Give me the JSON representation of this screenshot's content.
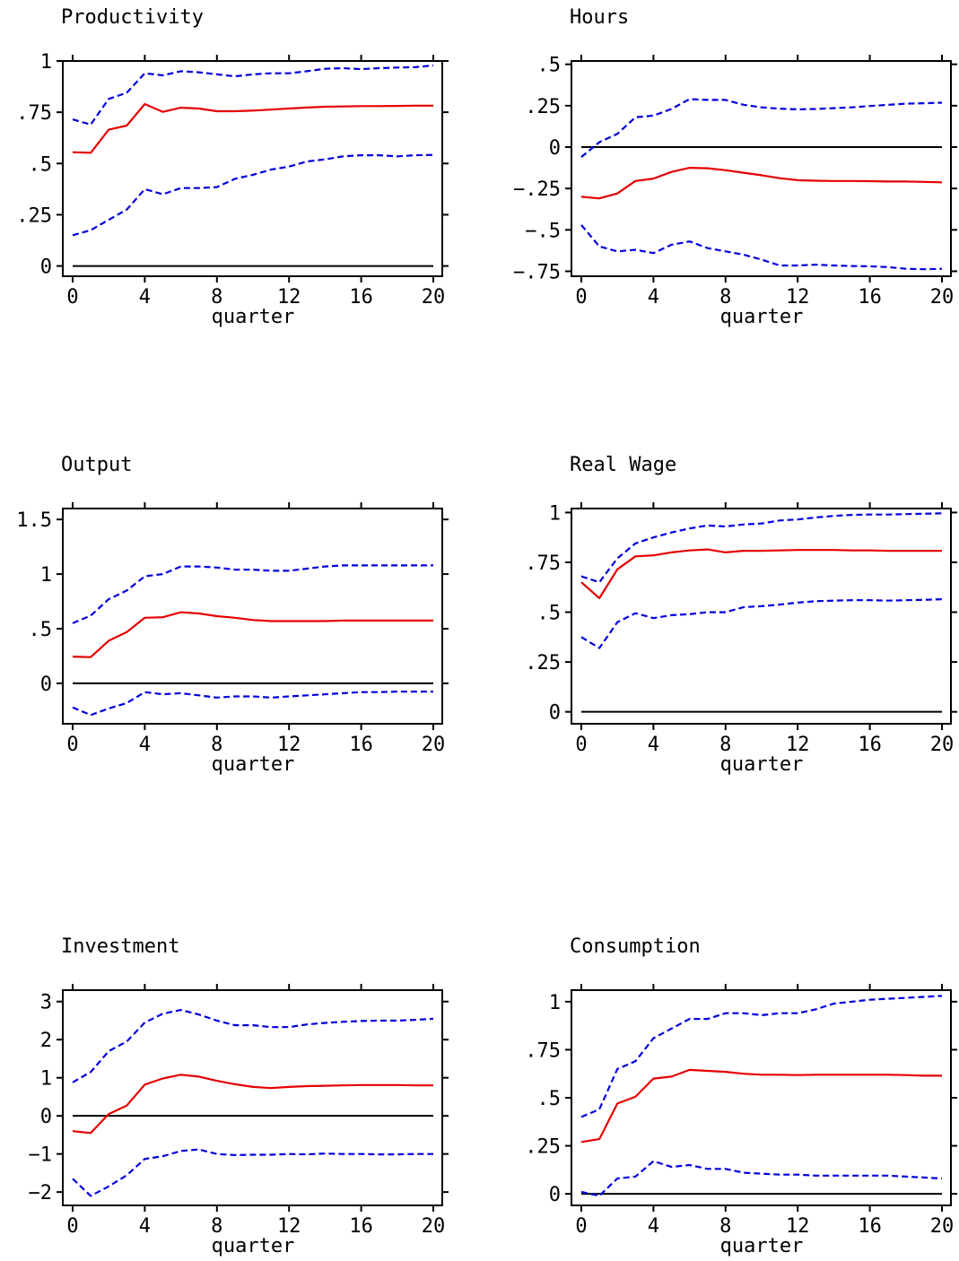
{
  "x_axis_label": "quarter",
  "colors": {
    "response": "#e60000",
    "bands": "#0000dd",
    "zero": "#000000",
    "frame": "#000000"
  },
  "chart_data": [
    {
      "type": "line",
      "title": "Productivity",
      "xlabel": "quarter",
      "ylabel": "",
      "xlim": [
        0,
        20
      ],
      "ylim": [
        -0.05,
        1.0
      ],
      "xticks": [
        0,
        4,
        8,
        12,
        16,
        20
      ],
      "xtick_labels": [
        "0",
        "4",
        "8",
        "12",
        "16",
        "20"
      ],
      "yticks": [
        0,
        0.25,
        0.5,
        0.75,
        1
      ],
      "ytick_labels": [
        "0",
        ".25",
        ".5",
        ".75",
        "1"
      ],
      "grid": false,
      "zero_line": 0,
      "x": [
        0,
        1,
        2,
        3,
        4,
        5,
        6,
        7,
        8,
        9,
        10,
        11,
        12,
        13,
        14,
        15,
        16,
        17,
        18,
        19,
        20
      ],
      "series": [
        {
          "role": "response",
          "style": "solid",
          "values": [
            0.555,
            0.552,
            0.665,
            0.685,
            0.79,
            0.752,
            0.772,
            0.768,
            0.755,
            0.755,
            0.758,
            0.763,
            0.768,
            0.773,
            0.777,
            0.778,
            0.78,
            0.78,
            0.781,
            0.782,
            0.782
          ]
        },
        {
          "role": "upper",
          "style": "dashed",
          "values": [
            0.715,
            0.69,
            0.815,
            0.845,
            0.94,
            0.93,
            0.95,
            0.945,
            0.935,
            0.925,
            0.935,
            0.94,
            0.94,
            0.95,
            0.962,
            0.965,
            0.96,
            0.965,
            0.968,
            0.97,
            0.978
          ]
        },
        {
          "role": "lower",
          "style": "dashed",
          "values": [
            0.15,
            0.175,
            0.225,
            0.275,
            0.375,
            0.35,
            0.38,
            0.38,
            0.385,
            0.425,
            0.445,
            0.47,
            0.485,
            0.51,
            0.52,
            0.535,
            0.54,
            0.54,
            0.535,
            0.54,
            0.542
          ]
        }
      ]
    },
    {
      "type": "line",
      "title": "Hours",
      "xlabel": "quarter",
      "ylabel": "",
      "xlim": [
        0,
        20
      ],
      "ylim": [
        -0.78,
        0.52
      ],
      "xticks": [
        0,
        4,
        8,
        12,
        16,
        20
      ],
      "xtick_labels": [
        "0",
        "4",
        "8",
        "12",
        "16",
        "20"
      ],
      "yticks": [
        0.5,
        0.25,
        0,
        -0.25,
        -0.5,
        -0.75
      ],
      "ytick_labels": [
        ".5",
        ".25",
        "0",
        "−.25",
        "−.5",
        "−.75"
      ],
      "grid": false,
      "zero_line": 0,
      "x": [
        0,
        1,
        2,
        3,
        4,
        5,
        6,
        7,
        8,
        9,
        10,
        11,
        12,
        13,
        14,
        15,
        16,
        17,
        18,
        19,
        20
      ],
      "series": [
        {
          "role": "response",
          "style": "solid",
          "values": [
            -0.3,
            -0.31,
            -0.28,
            -0.205,
            -0.19,
            -0.15,
            -0.125,
            -0.128,
            -0.14,
            -0.155,
            -0.17,
            -0.188,
            -0.2,
            -0.203,
            -0.205,
            -0.205,
            -0.206,
            -0.208,
            -0.208,
            -0.21,
            -0.213
          ]
        },
        {
          "role": "upper",
          "style": "dashed",
          "values": [
            -0.06,
            0.03,
            0.08,
            0.18,
            0.19,
            0.23,
            0.29,
            0.285,
            0.285,
            0.255,
            0.24,
            0.232,
            0.228,
            0.23,
            0.235,
            0.24,
            0.248,
            0.255,
            0.262,
            0.265,
            0.268
          ]
        },
        {
          "role": "lower",
          "style": "dashed",
          "values": [
            -0.47,
            -0.6,
            -0.63,
            -0.62,
            -0.64,
            -0.59,
            -0.57,
            -0.61,
            -0.63,
            -0.65,
            -0.68,
            -0.715,
            -0.715,
            -0.71,
            -0.715,
            -0.718,
            -0.72,
            -0.725,
            -0.735,
            -0.738,
            -0.735
          ]
        }
      ]
    },
    {
      "type": "line",
      "title": "Output",
      "xlabel": "quarter",
      "ylabel": "",
      "xlim": [
        0,
        20
      ],
      "ylim": [
        -0.37,
        1.6
      ],
      "xticks": [
        0,
        4,
        8,
        12,
        16,
        20
      ],
      "xtick_labels": [
        "0",
        "4",
        "8",
        "12",
        "16",
        "20"
      ],
      "yticks": [
        0,
        0.5,
        1,
        1.5
      ],
      "ytick_labels": [
        "0",
        ".5",
        "1",
        "1.5"
      ],
      "grid": false,
      "zero_line": 0,
      "x": [
        0,
        1,
        2,
        3,
        4,
        5,
        6,
        7,
        8,
        9,
        10,
        11,
        12,
        13,
        14,
        15,
        16,
        17,
        18,
        19,
        20
      ],
      "series": [
        {
          "role": "response",
          "style": "solid",
          "values": [
            0.245,
            0.24,
            0.39,
            0.47,
            0.6,
            0.605,
            0.65,
            0.64,
            0.615,
            0.6,
            0.58,
            0.57,
            0.57,
            0.57,
            0.57,
            0.575,
            0.575,
            0.575,
            0.575,
            0.575,
            0.575
          ]
        },
        {
          "role": "upper",
          "style": "dashed",
          "values": [
            0.55,
            0.62,
            0.77,
            0.85,
            0.98,
            1.0,
            1.07,
            1.07,
            1.06,
            1.04,
            1.04,
            1.03,
            1.03,
            1.05,
            1.07,
            1.08,
            1.08,
            1.08,
            1.08,
            1.08,
            1.08
          ]
        },
        {
          "role": "lower",
          "style": "dashed",
          "values": [
            -0.22,
            -0.29,
            -0.23,
            -0.18,
            -0.08,
            -0.1,
            -0.09,
            -0.11,
            -0.13,
            -0.12,
            -0.12,
            -0.13,
            -0.12,
            -0.11,
            -0.1,
            -0.09,
            -0.08,
            -0.08,
            -0.075,
            -0.075,
            -0.075
          ]
        }
      ]
    },
    {
      "type": "line",
      "title": "Real Wage",
      "xlabel": "quarter",
      "ylabel": "",
      "xlim": [
        0,
        20
      ],
      "ylim": [
        -0.06,
        1.02
      ],
      "xticks": [
        0,
        4,
        8,
        12,
        16,
        20
      ],
      "xtick_labels": [
        "0",
        "4",
        "8",
        "12",
        "16",
        "20"
      ],
      "yticks": [
        0,
        0.25,
        0.5,
        0.75,
        1
      ],
      "ytick_labels": [
        "0",
        ".25",
        ".5",
        ".75",
        "1"
      ],
      "grid": false,
      "zero_line": 0,
      "x": [
        0,
        1,
        2,
        3,
        4,
        5,
        6,
        7,
        8,
        9,
        10,
        11,
        12,
        13,
        14,
        15,
        16,
        17,
        18,
        19,
        20
      ],
      "series": [
        {
          "role": "response",
          "style": "solid",
          "values": [
            0.65,
            0.57,
            0.715,
            0.78,
            0.785,
            0.8,
            0.81,
            0.815,
            0.8,
            0.808,
            0.808,
            0.81,
            0.812,
            0.812,
            0.812,
            0.81,
            0.81,
            0.808,
            0.808,
            0.808,
            0.808
          ]
        },
        {
          "role": "upper",
          "style": "dashed",
          "values": [
            0.68,
            0.65,
            0.77,
            0.845,
            0.875,
            0.9,
            0.92,
            0.935,
            0.93,
            0.94,
            0.945,
            0.96,
            0.965,
            0.975,
            0.983,
            0.988,
            0.99,
            0.99,
            0.992,
            0.994,
            0.996
          ]
        },
        {
          "role": "lower",
          "style": "dashed",
          "values": [
            0.375,
            0.32,
            0.45,
            0.495,
            0.47,
            0.485,
            0.49,
            0.5,
            0.5,
            0.525,
            0.53,
            0.538,
            0.548,
            0.555,
            0.558,
            0.56,
            0.56,
            0.558,
            0.56,
            0.562,
            0.565
          ]
        }
      ]
    },
    {
      "type": "line",
      "title": "Investment",
      "xlabel": "quarter",
      "ylabel": "",
      "xlim": [
        0,
        20
      ],
      "ylim": [
        -2.35,
        3.3
      ],
      "xticks": [
        0,
        4,
        8,
        12,
        16,
        20
      ],
      "xtick_labels": [
        "0",
        "4",
        "8",
        "12",
        "16",
        "20"
      ],
      "yticks": [
        3,
        2,
        1,
        0,
        -1,
        -2
      ],
      "ytick_labels": [
        "3",
        "2",
        "1",
        "0",
        "−1",
        "−2"
      ],
      "grid": false,
      "zero_line": 0,
      "x": [
        0,
        1,
        2,
        3,
        4,
        5,
        6,
        7,
        8,
        9,
        10,
        11,
        12,
        13,
        14,
        15,
        16,
        17,
        18,
        19,
        20
      ],
      "series": [
        {
          "role": "response",
          "style": "solid",
          "values": [
            -0.4,
            -0.45,
            0.05,
            0.27,
            0.82,
            0.98,
            1.08,
            1.03,
            0.92,
            0.83,
            0.76,
            0.73,
            0.76,
            0.78,
            0.79,
            0.8,
            0.81,
            0.81,
            0.81,
            0.8,
            0.8
          ]
        },
        {
          "role": "upper",
          "style": "dashed",
          "values": [
            0.88,
            1.15,
            1.7,
            1.95,
            2.45,
            2.68,
            2.78,
            2.66,
            2.5,
            2.38,
            2.38,
            2.33,
            2.33,
            2.4,
            2.44,
            2.47,
            2.49,
            2.5,
            2.5,
            2.52,
            2.55
          ]
        },
        {
          "role": "lower",
          "style": "dashed",
          "values": [
            -1.65,
            -2.1,
            -1.85,
            -1.56,
            -1.13,
            -1.06,
            -0.92,
            -0.88,
            -1.0,
            -1.03,
            -1.02,
            -1.02,
            -1.0,
            -1.01,
            -0.99,
            -1.0,
            -1.0,
            -1.01,
            -1.01,
            -1.0,
            -1.0
          ]
        }
      ]
    },
    {
      "type": "line",
      "title": "Consumption",
      "xlabel": "quarter",
      "ylabel": "",
      "xlim": [
        0,
        20
      ],
      "ylim": [
        -0.06,
        1.06
      ],
      "xticks": [
        0,
        4,
        8,
        12,
        16,
        20
      ],
      "xtick_labels": [
        "0",
        "4",
        "8",
        "12",
        "16",
        "20"
      ],
      "yticks": [
        0,
        0.25,
        0.5,
        0.75,
        1
      ],
      "ytick_labels": [
        "0",
        ".25",
        ".5",
        ".75",
        "1"
      ],
      "grid": false,
      "zero_line": 0,
      "x": [
        0,
        1,
        2,
        3,
        4,
        5,
        6,
        7,
        8,
        9,
        10,
        11,
        12,
        13,
        14,
        15,
        16,
        17,
        18,
        19,
        20
      ],
      "series": [
        {
          "role": "response",
          "style": "solid",
          "values": [
            0.27,
            0.285,
            0.47,
            0.505,
            0.6,
            0.61,
            0.645,
            0.64,
            0.635,
            0.625,
            0.62,
            0.62,
            0.618,
            0.62,
            0.62,
            0.62,
            0.62,
            0.62,
            0.618,
            0.615,
            0.615
          ]
        },
        {
          "role": "upper",
          "style": "dashed",
          "values": [
            0.4,
            0.44,
            0.65,
            0.69,
            0.81,
            0.86,
            0.91,
            0.91,
            0.94,
            0.94,
            0.93,
            0.94,
            0.94,
            0.96,
            0.99,
            1.0,
            1.01,
            1.015,
            1.02,
            1.025,
            1.03
          ]
        },
        {
          "role": "lower",
          "style": "dashed",
          "values": [
            0.01,
            -0.01,
            0.08,
            0.09,
            0.17,
            0.14,
            0.15,
            0.13,
            0.13,
            0.11,
            0.105,
            0.1,
            0.1,
            0.095,
            0.095,
            0.095,
            0.095,
            0.095,
            0.09,
            0.085,
            0.08
          ]
        }
      ]
    }
  ]
}
